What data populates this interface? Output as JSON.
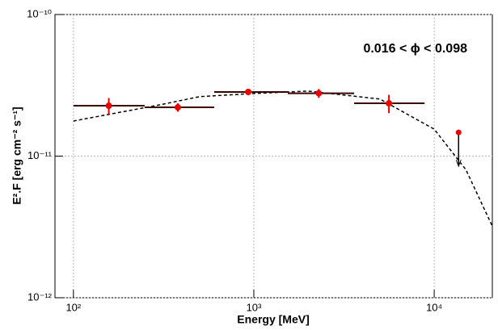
{
  "chart_data": {
    "type": "scatter",
    "xlabel": "Energy [MeV]",
    "ylabel": "E².F [erg cm⁻² s⁻¹]",
    "annotation": "0.016 < ϕ < 0.098",
    "xlog": true,
    "ylog": true,
    "grid": true,
    "xlim": [
      79,
      21000
    ],
    "ylim": [
      1e-12,
      1e-10
    ],
    "xticks": [
      {
        "value": 100,
        "label": "10²"
      },
      {
        "value": 1000,
        "label": "10³"
      },
      {
        "value": 10000,
        "label": "10⁴"
      }
    ],
    "yticks": [
      {
        "value": 1e-12,
        "label": "10⁻¹²"
      },
      {
        "value": 1e-11,
        "label": "10⁻¹¹"
      },
      {
        "value": 1e-10,
        "label": "10⁻¹⁰"
      }
    ],
    "points": {
      "color": "#ee0000",
      "error_color": "#3a0000",
      "x": [
        157,
        379,
        931,
        2290,
        5610
      ],
      "values": [
        2.27e-11,
        2.21e-11,
        2.84e-11,
        2.78e-11,
        2.36e-11
      ],
      "y_err": [
        3e-12,
        1.5e-12,
        1.5e-12,
        2e-12,
        3.5e-12
      ],
      "x_low": [
        100,
        248,
        603,
        1542,
        3600
      ],
      "x_high": [
        248,
        603,
        1542,
        3600,
        8840
      ]
    },
    "upper_limit": {
      "color": "#ee0000",
      "x": 13650,
      "value": 1.47e-11
    },
    "model": {
      "color": "#000000",
      "x": [
        100,
        300,
        500,
        1000,
        2000,
        5000,
        10000,
        15000,
        21000
      ],
      "values": [
        1.77e-11,
        2.3e-11,
        2.63e-11,
        2.77e-11,
        2.88e-11,
        2.53e-11,
        1.55e-11,
        8e-12,
        3.2e-12
      ]
    }
  }
}
